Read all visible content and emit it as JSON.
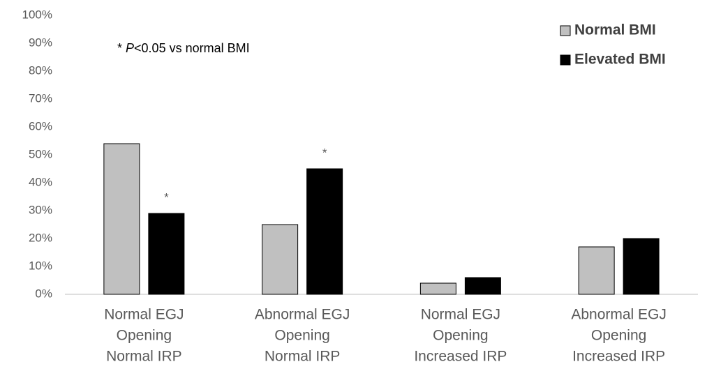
{
  "chart_data": {
    "type": "bar",
    "categories": [
      [
        "Normal EGJ",
        "Opening",
        "Normal IRP"
      ],
      [
        "Abnormal EGJ",
        "Opening",
        "Normal IRP"
      ],
      [
        "Normal EGJ",
        "Opening",
        "Increased IRP"
      ],
      [
        "Abnormal EGJ",
        "Opening",
        "Increased IRP"
      ]
    ],
    "series": [
      {
        "name": "Normal BMI",
        "color": "#c0c0c0",
        "values": [
          54,
          25,
          4,
          17
        ]
      },
      {
        "name": "Elevated BMI",
        "color": "#000000",
        "values": [
          29,
          45,
          6,
          20
        ],
        "value_labels": [
          "*",
          "*",
          null,
          null
        ]
      }
    ],
    "note": {
      "prefix": "* ",
      "italic": "P",
      "suffix": "<0.05 vs normal BMI"
    },
    "ylim": [
      0,
      100
    ],
    "yticks": [
      {
        "value": 0,
        "label": "0%"
      },
      {
        "value": 10,
        "label": "10%"
      },
      {
        "value": 20,
        "label": "20%"
      },
      {
        "value": 30,
        "label": "30%"
      },
      {
        "value": 40,
        "label": "40%"
      },
      {
        "value": 50,
        "label": "50%"
      },
      {
        "value": 60,
        "label": "60%"
      },
      {
        "value": 70,
        "label": "70%"
      },
      {
        "value": 80,
        "label": "80%"
      },
      {
        "value": 90,
        "label": "90%"
      },
      {
        "value": 100,
        "label": "100%"
      }
    ],
    "grid": false,
    "legend": "top-right"
  }
}
